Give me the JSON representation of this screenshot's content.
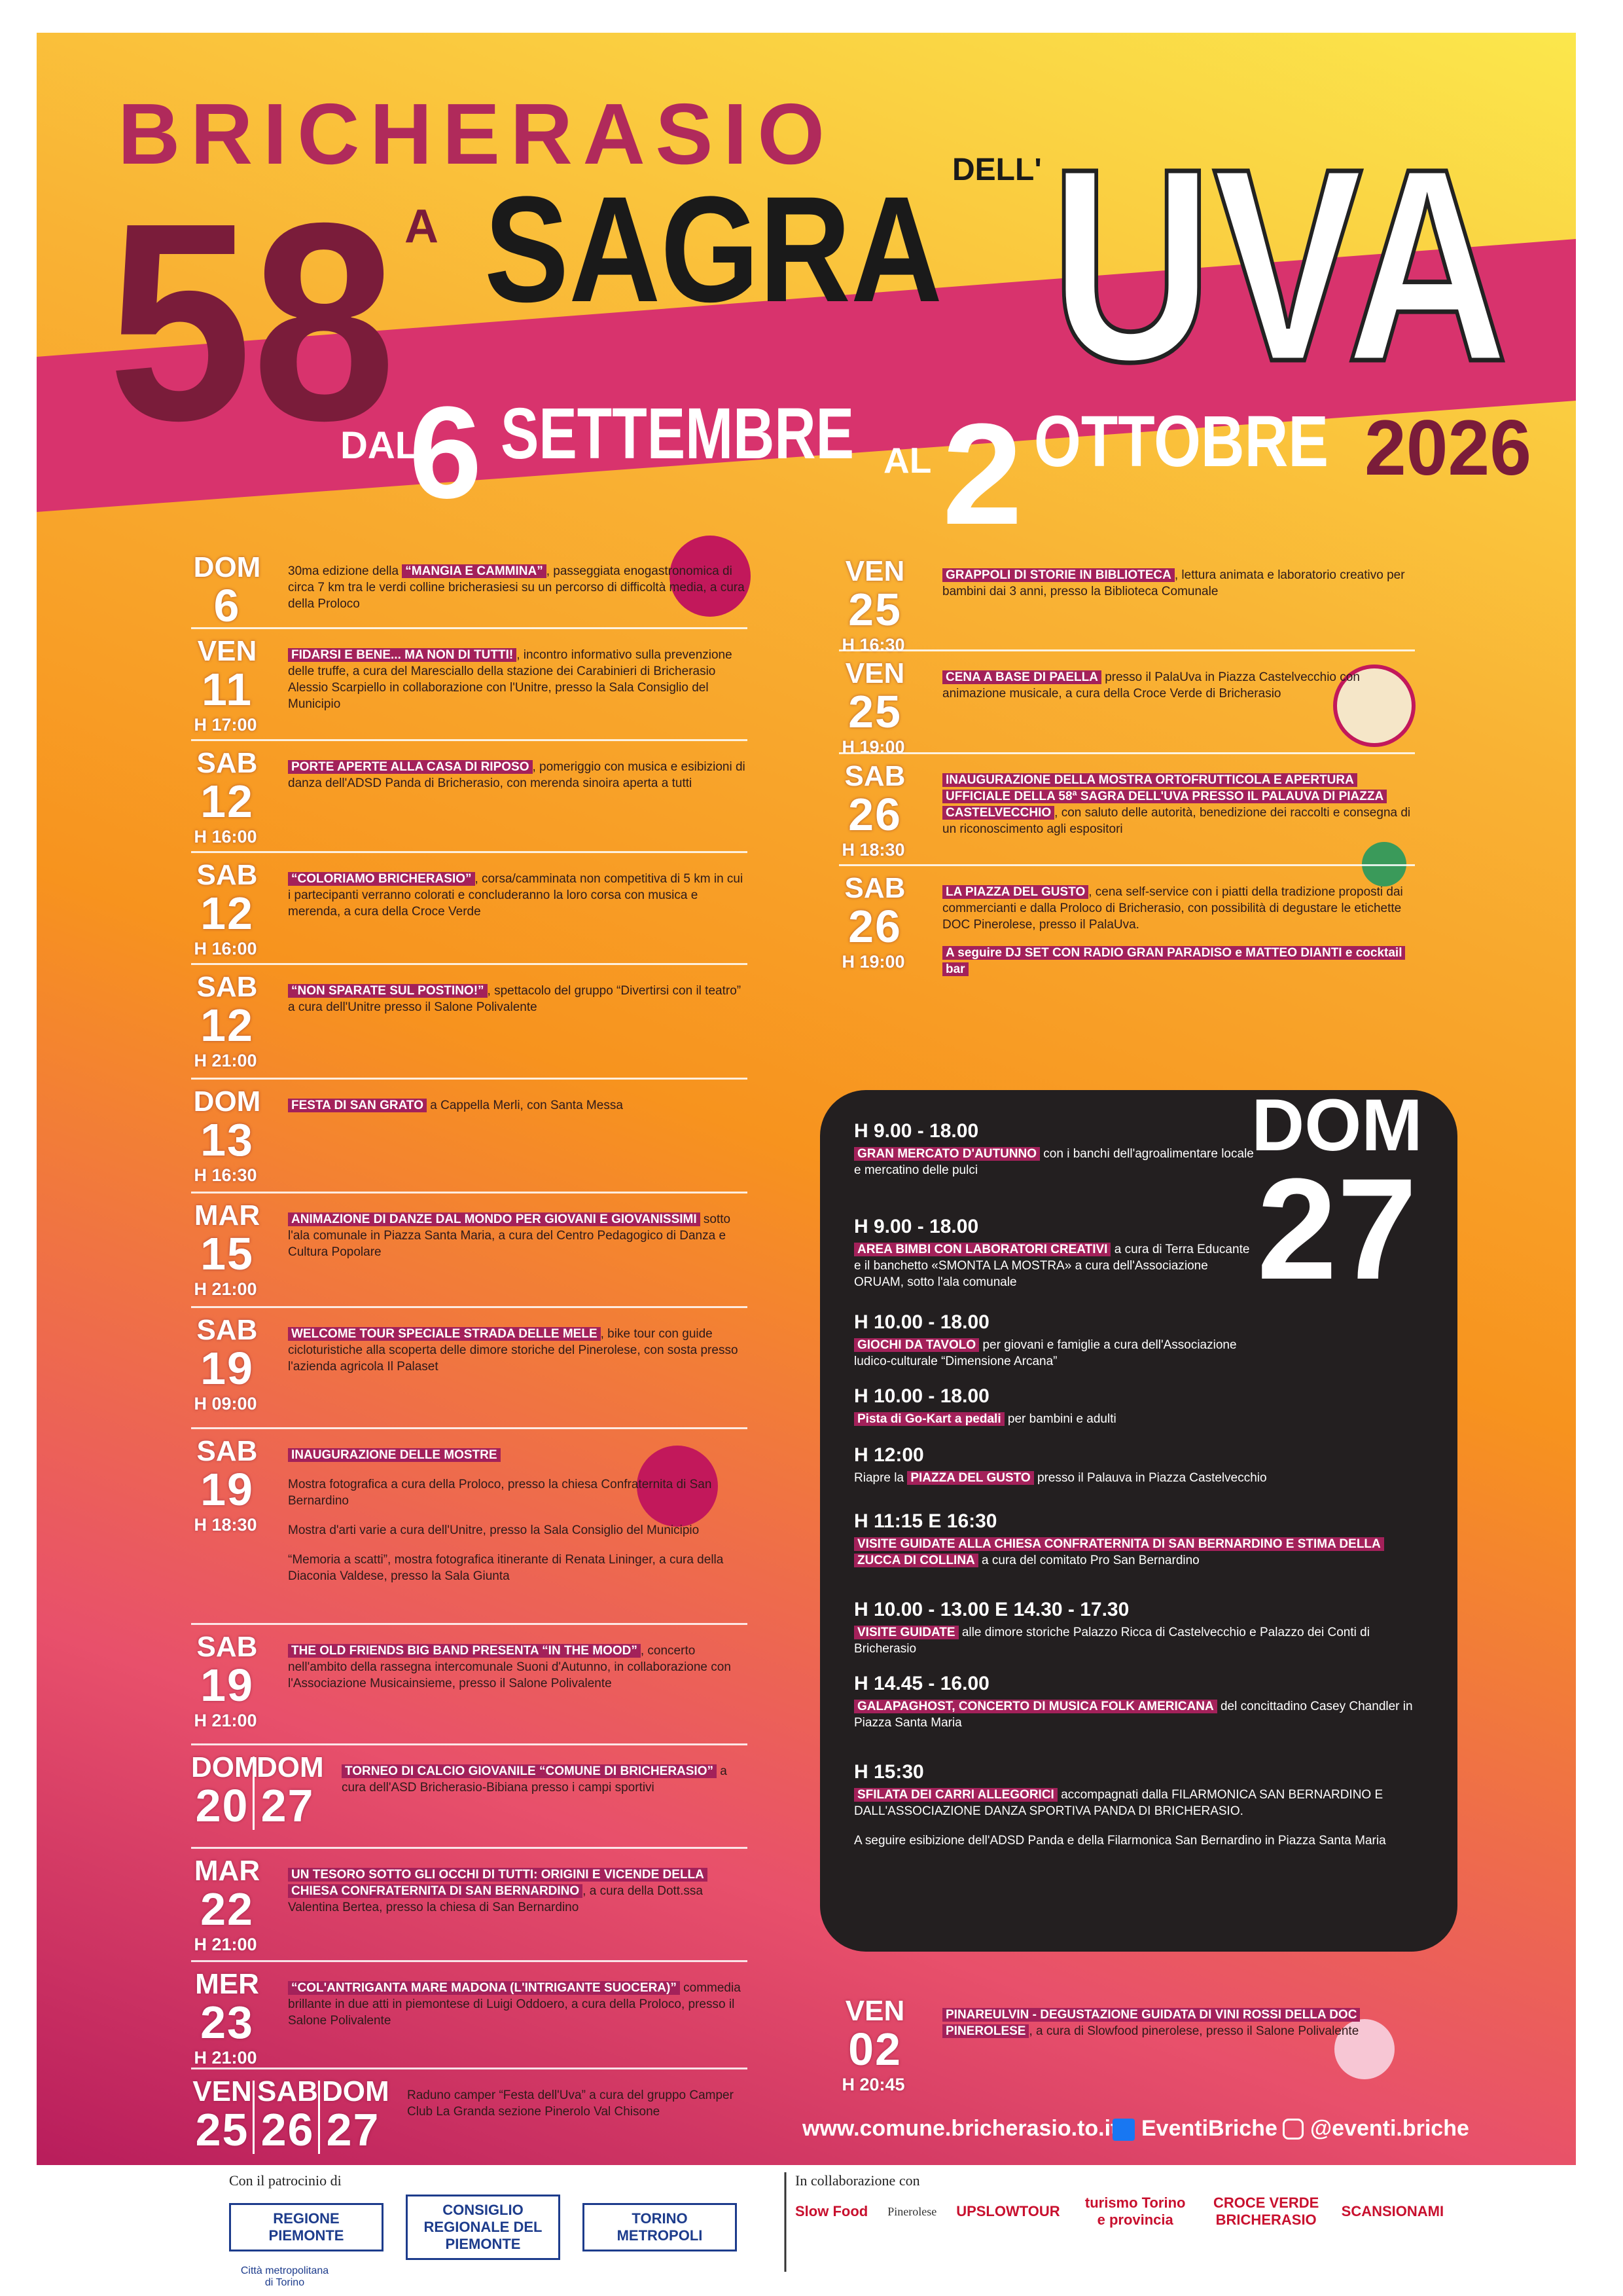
{
  "header": {
    "city": "BRICHERASIO",
    "edition": "58",
    "edition_suffix": "A",
    "sagra": "SAGRA",
    "dell": "DELL'",
    "uva": "UVA",
    "from": "DAL",
    "start_day": "6",
    "start_month": "SETTEMBRE",
    "to": "AL",
    "end_day": "2",
    "end_month": "OTTOBRE",
    "year": "2026"
  },
  "left_events": [
    {
      "days": [
        {
          "day": "DOM",
          "date": "6"
        }
      ],
      "pre": "30ma edizione della ",
      "title": "“MANGIA E CAMMINA”",
      "text": ", passeggiata enogastronomica di circa 7 km tra le verdi colline bricherasiesi su un percorso di difficoltà media, a cura della Proloco"
    },
    {
      "days": [
        {
          "day": "VEN",
          "date": "11"
        }
      ],
      "time": "H 17:00",
      "title": "FIDARSI E BENE... MA NON DI TUTTI!",
      "text": ", incontro informativo sulla prevenzione delle truffe, a cura del Maresciallo della stazione dei Carabinieri di Bricherasio Alessio Scarpiello in collaborazione con l'Unitre, presso la Sala Consiglio del Municipio"
    },
    {
      "days": [
        {
          "day": "SAB",
          "date": "12"
        }
      ],
      "time": "H 16:00",
      "title": "PORTE APERTE ALLA CASA DI RIPOSO",
      "text": ", pomeriggio con musica e esibizioni di danza dell'ADSD Panda di Bricherasio, con merenda sinoira aperta a tutti"
    },
    {
      "days": [
        {
          "day": "SAB",
          "date": "12"
        }
      ],
      "time": "H 16:00",
      "title": "“COLORIAMO BRICHERASIO”",
      "text": ", corsa/camminata non competitiva di 5 km in cui i partecipanti verranno colorati e concluderanno la loro corsa con musica e merenda, a cura della Croce Verde"
    },
    {
      "days": [
        {
          "day": "SAB",
          "date": "12"
        }
      ],
      "time": "H 21:00",
      "title": "“NON SPARATE SUL POSTINO!”",
      "text": ", spettacolo del gruppo “Divertirsi con il teatro” a cura dell'Unitre presso il Salone Polivalente"
    },
    {
      "days": [
        {
          "day": "DOM",
          "date": "13"
        }
      ],
      "time": "H 16:30",
      "title": "FESTA DI SAN GRATO",
      "text": " a Cappella Merli, con Santa Messa"
    },
    {
      "days": [
        {
          "day": "MAR",
          "date": "15"
        }
      ],
      "time": "H 21:00",
      "title": "ANIMAZIONE DI DANZE DAL MONDO PER GIOVANI E GIOVANISSIMI",
      "text": " sotto l'ala comunale in Piazza Santa Maria, a cura del Centro Pedagogico di Danza e Cultura Popolare"
    },
    {
      "days": [
        {
          "day": "SAB",
          "date": "19"
        }
      ],
      "time": "H 09:00",
      "title": "WELCOME TOUR SPECIALE STRADA DELLE MELE",
      "text": ", bike tour con guide cicloturistiche alla scoperta delle dimore storiche del Pinerolese, con sosta presso l'azienda agricola Il Palaset"
    },
    {
      "days": [
        {
          "day": "SAB",
          "date": "19"
        }
      ],
      "time": "H 18:30",
      "title": "INAUGURAZIONE DELLE MOSTRE",
      "paragraphs": [
        "Mostra fotografica a cura della Proloco, presso la chiesa Confraternita di San Bernardino",
        "Mostra d'arti varie a cura dell'Unitre, presso la Sala Consiglio del Municipio",
        "“Memoria a scatti”, mostra fotografica itinerante di Renata Lininger, a cura della Diaconia Valdese, presso la Sala Giunta"
      ]
    },
    {
      "days": [
        {
          "day": "SAB",
          "date": "19"
        }
      ],
      "time": "H 21:00",
      "title": "THE OLD FRIENDS BIG BAND PRESENTA “IN THE MOOD”",
      "text": ", concerto nell'ambito della rassegna intercomunale Suoni d'Autunno, in collaborazione con l'Associazione Musicainsieme, presso il Salone Polivalente"
    },
    {
      "days": [
        {
          "day": "DOM",
          "date": "20"
        },
        {
          "day": "DOM",
          "date": "27"
        }
      ],
      "title": "TORNEO DI CALCIO GIOVANILE “COMUNE DI BRICHERASIO”",
      "text": " a cura dell'ASD Bricherasio-Bibiana presso i campi sportivi"
    },
    {
      "days": [
        {
          "day": "MAR",
          "date": "22"
        }
      ],
      "time": "H 21:00",
      "title": "UN TESORO SOTTO GLI OCCHI DI TUTTI: ORIGINI E VICENDE DELLA CHIESA CONFRATERNITA DI SAN BERNARDINO",
      "text": ", a cura della Dott.ssa Valentina Bertea, presso la chiesa di San Bernardino"
    },
    {
      "days": [
        {
          "day": "MER",
          "date": "23"
        }
      ],
      "time": "H 21:00",
      "title": "“COL'ANTRIGANTA MARE MADONA (L'INTRIGANTE SUOCERA)”",
      "text": " commedia brillante in due atti in piemontese di Luigi Oddoero, a cura della Proloco, presso il Salone Polivalente"
    },
    {
      "days": [
        {
          "day": "VEN",
          "date": "25"
        },
        {
          "day": "SAB",
          "date": "26"
        },
        {
          "day": "DOM",
          "date": "27"
        }
      ],
      "text": "Raduno camper “Festa dell'Uva” a cura del gruppo Camper Club La Granda sezione Pinerolo Val Chisone"
    }
  ],
  "right_events": [
    {
      "days": [
        {
          "day": "VEN",
          "date": "25"
        }
      ],
      "time": "H 16:30",
      "title": "GRAPPOLI DI STORIE IN BIBLIOTECA",
      "text": ", lettura animata e laboratorio creativo per bambini dai 3 anni, presso la Biblioteca Comunale"
    },
    {
      "days": [
        {
          "day": "VEN",
          "date": "25"
        }
      ],
      "time": "H 19:00",
      "title": "CENA A BASE DI PAELLA",
      "text": " presso il PalaUva in Piazza Castelvecchio con animazione musicale, a cura della Croce Verde di Bricherasio"
    },
    {
      "days": [
        {
          "day": "SAB",
          "date": "26"
        }
      ],
      "time": "H 18:30",
      "title": "INAUGURAZIONE DELLA MOSTRA ORTOFRUTTICOLA E APERTURA UFFICIALE DELLA 58ª SAGRA DELL'UVA PRESSO IL PALAUVA DI PIAZZA CASTELVECCHIO",
      "text": ", con saluto delle autorità, benedizione dei raccolti e consegna di un riconoscimento agli espositori"
    },
    {
      "days": [
        {
          "day": "SAB",
          "date": "26"
        }
      ],
      "time": "H 19:00",
      "title": "LA PIAZZA DEL GUSTO",
      "text": ", cena self-service con i piatti della tradizione proposti dai commercianti e dalla Proloco di Bricherasio, con possibilità di degustare le etichette DOC Pinerolese, presso il PalaUva.",
      "extra": "A seguire DJ SET CON RADIO GRAN PARADISO e MATTEO DIANTI e cocktail bar"
    },
    {
      "days": [
        {
          "day": "VEN",
          "date": "02"
        }
      ],
      "time": "H 20:45",
      "title": "PINAREULVIN - DEGUSTAZIONE GUIDATA DI VINI ROSSI DELLA DOC PINEROLESE",
      "text": ", a cura di Slowfood pinerolese, presso il Salone Polivalente"
    }
  ],
  "sunday": {
    "day": "DOM",
    "date": "27",
    "items": [
      {
        "time": "H 9.00 - 18.00",
        "title": "GRAN MERCATO D'AUTUNNO",
        "text": " con i banchi dell'agroalimentare locale e mercatino delle pulci"
      },
      {
        "time": "H 9.00 - 18.00",
        "title": "AREA BIMBI CON LABORATORI CREATIVI",
        "text": " a cura di Terra Educante e il banchetto «SMONTA LA MOSTRA» a cura dell'Associazione ORUAM, sotto l'ala comunale"
      },
      {
        "time": "H 10.00 - 18.00",
        "title": "GIOCHI DA TAVOLO",
        "text": " per giovani e famiglie a cura dell'Associazione ludico-culturale “Dimensione Arcana”"
      },
      {
        "time": "H 10.00 - 18.00",
        "title": "Pista di Go-Kart a pedali",
        "text": " per bambini e adulti"
      },
      {
        "time": "H 12:00",
        "pre": "Riapre la ",
        "title": "PIAZZA DEL GUSTO",
        "text": " presso il Palauva in Piazza Castelvecchio"
      },
      {
        "time": "H 11:15 E 16:30",
        "title": "VISITE GUIDATE ALLA CHIESA CONFRATERNITA DI SAN BERNARDINO E STIMA DELLA ZUCCA DI COLLINA",
        "text": " a cura del comitato Pro San Bernardino"
      },
      {
        "time": "H 10.00 - 13.00 E 14.30 - 17.30",
        "title": "VISITE GUIDATE",
        "text": " alle dimore storiche Palazzo Ricca di Castelvecchio e Palazzo dei Conti di Bricherasio"
      },
      {
        "time": "H 14.45 - 16.00",
        "title": "GALAPAGHOST, CONCERTO DI MUSICA FOLK AMERICANA",
        "text": " del concittadino Casey Chandler in Piazza Santa Maria"
      },
      {
        "time": "H 15:30",
        "title": "SFILATA DEI CARRI ALLEGORICI",
        "text": " accompagnati dalla FILARMONICA SAN BERNARDINO E DALL'ASSOCIAZIONE DANZA SPORTIVA PANDA DI BRICHERASIO.",
        "note": "A seguire esibizione dell'ADSD Panda e della Filarmonica San Bernardino in Piazza Santa Maria"
      }
    ]
  },
  "links": {
    "website": "www.comune.bricherasio.to.it",
    "facebook": "EventiBriche",
    "instagram": "@eventi.briche"
  },
  "footer": {
    "patronage": "Con il patrocinio di",
    "patrons": [
      "REGIONE PIEMONTE",
      "CONSIGLIO REGIONALE DEL PIEMONTE",
      "TORINO METROPOLI",
      "Città metropolitana di Torino"
    ],
    "collaboration": "In collaborazione con",
    "partners": [
      "Slow Food",
      "Pinerolese",
      "UPSLOWTOUR",
      "turismo Torino e provincia",
      "CROCE VERDE BRICHERASIO",
      "SCANSIONAMI"
    ]
  }
}
